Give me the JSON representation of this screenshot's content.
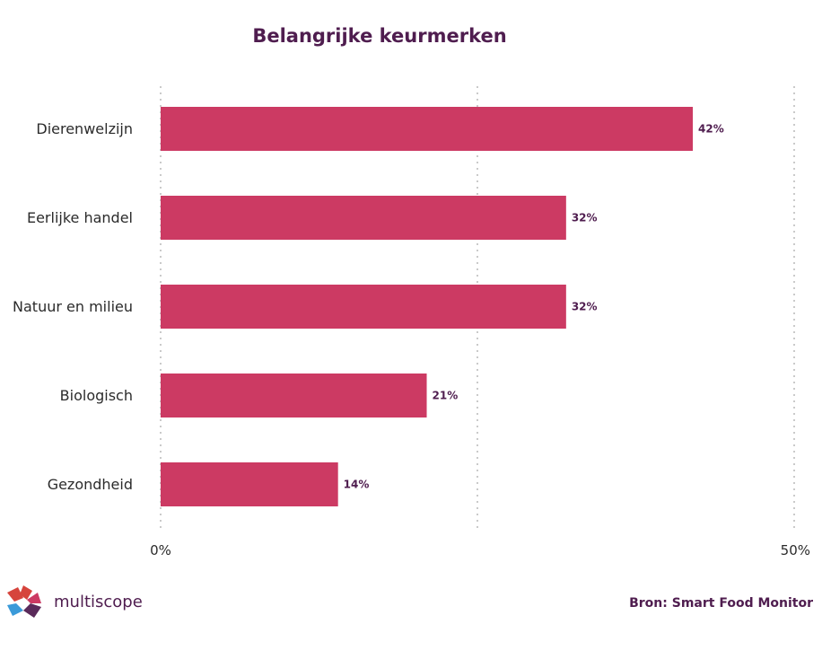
{
  "chart_data": {
    "type": "bar",
    "orientation": "horizontal",
    "title": "Belangrijke keurmerken",
    "categories": [
      "Dierenwelzijn",
      "Eerlijke handel",
      "Natuur en milieu",
      "Biologisch",
      "Gezondheid"
    ],
    "values": [
      42,
      32,
      32,
      21,
      14
    ],
    "value_labels": [
      "42%",
      "32%",
      "32%",
      "21%",
      "14%"
    ],
    "xlim": [
      0,
      50
    ],
    "ticks": [
      {
        "value": 0,
        "label": "0%"
      },
      {
        "value": 50,
        "label": "50%"
      }
    ],
    "gridlines": [
      0,
      25,
      50
    ],
    "bar_color": "#cc3a63"
  },
  "footer": {
    "logo_text": "multiscope",
    "source": "Bron: Smart Food Monitor"
  },
  "colors": {
    "title": "#4f1d4f",
    "grid": "#b8b8b8",
    "logo_red": "#d6443c",
    "logo_blue": "#3a9ad9",
    "logo_purple": "#5a2a5a"
  }
}
